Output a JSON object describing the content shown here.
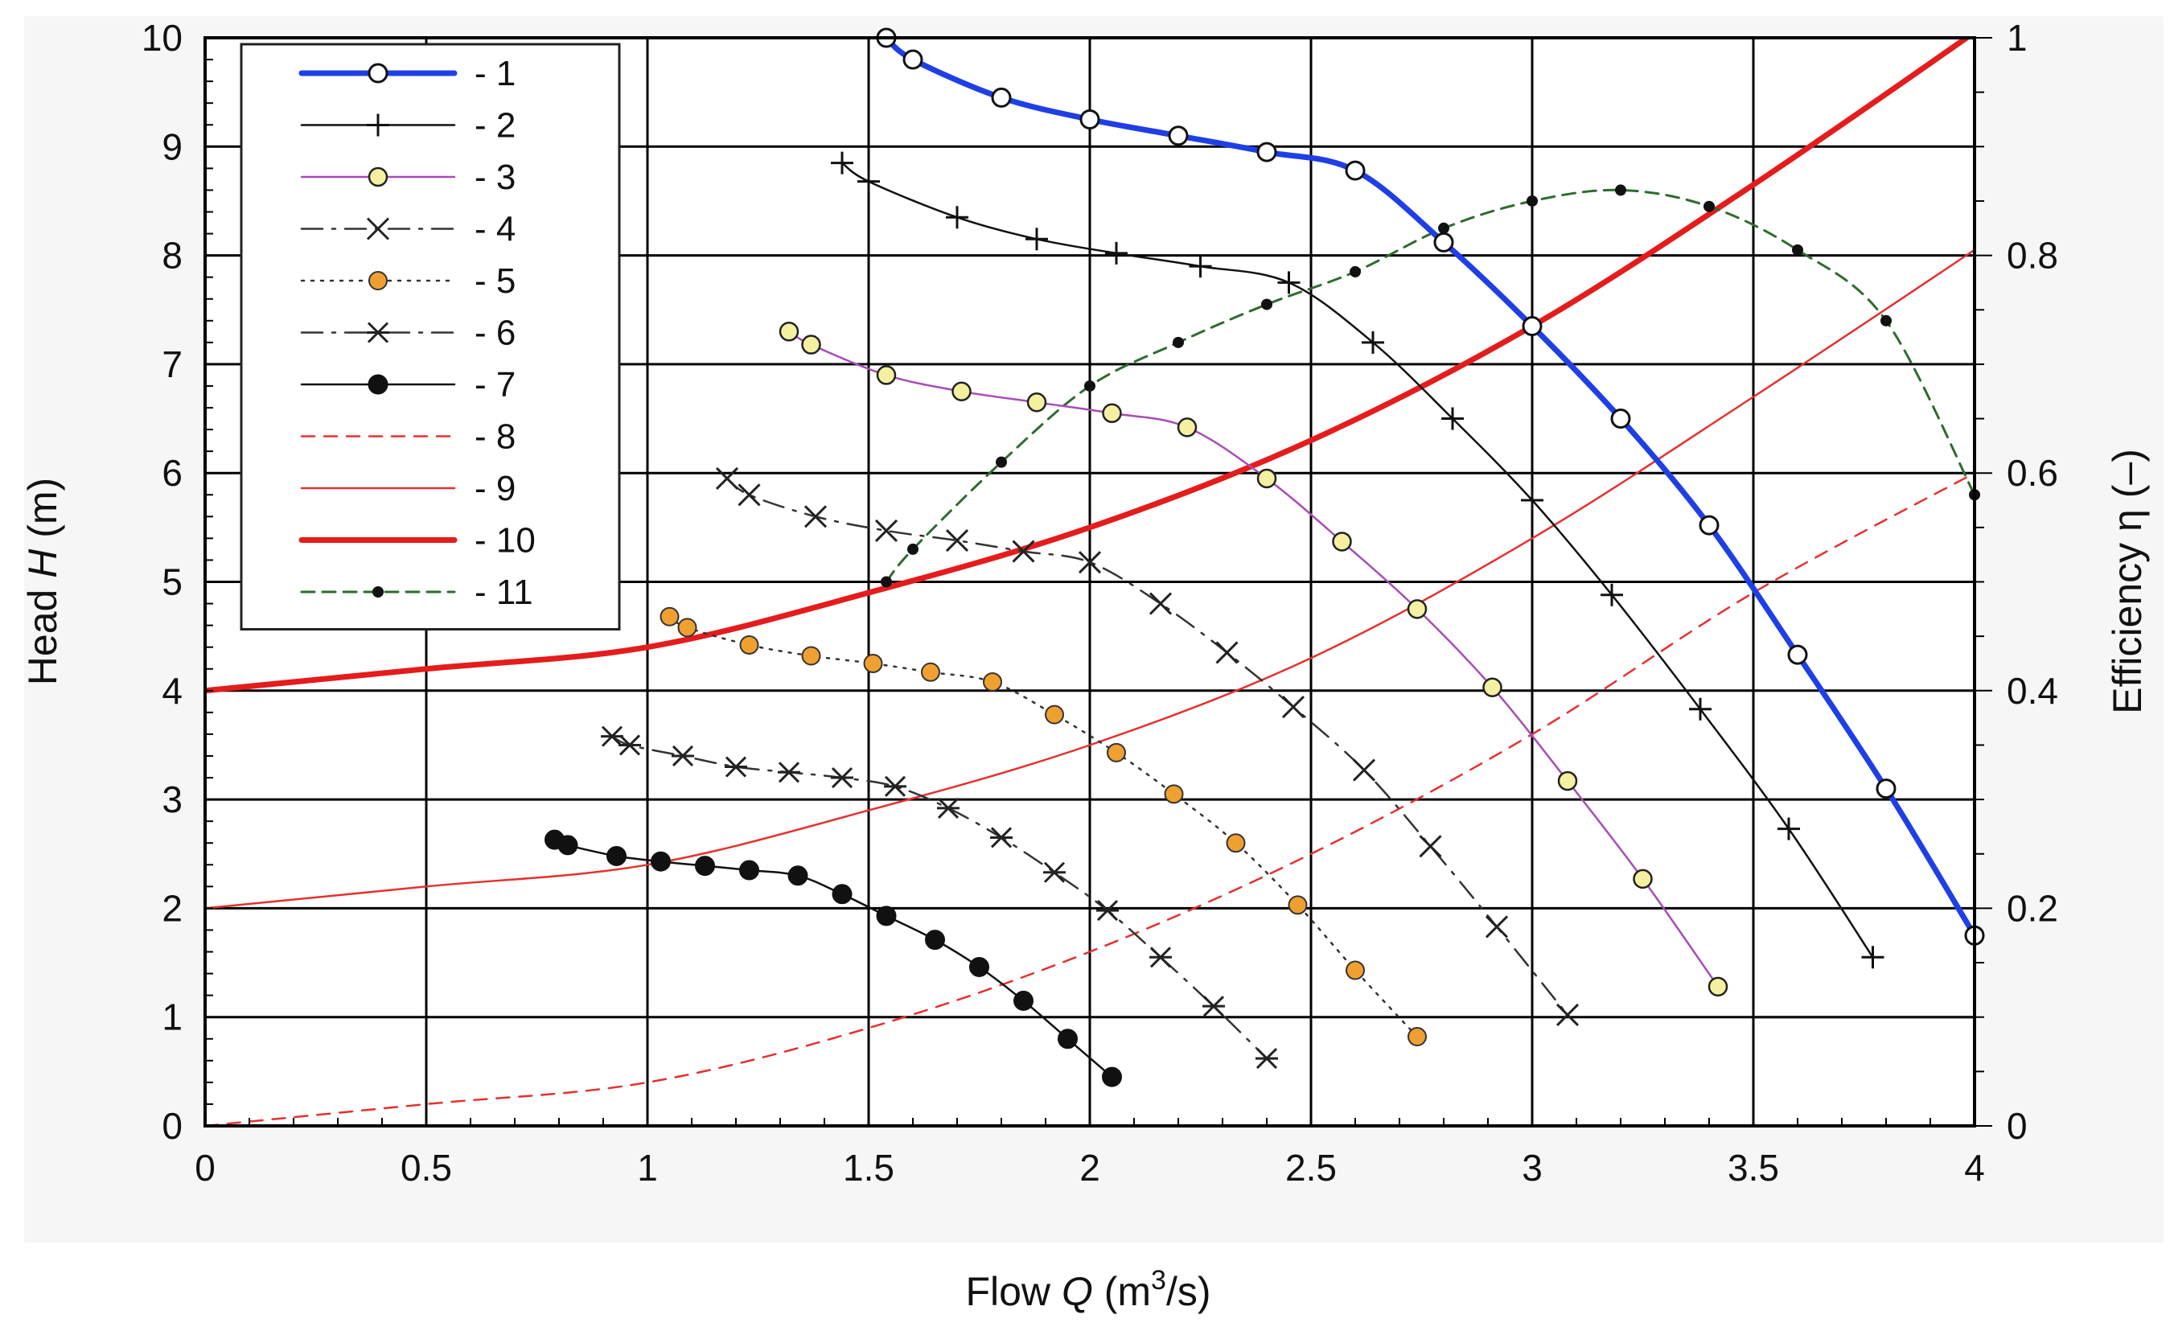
{
  "chart_data": {
    "type": "line",
    "title": "",
    "xlabel": "Flow Q (m3/s)",
    "xlabel_parts": {
      "prefix": "Flow ",
      "var": "Q",
      "mid": " (m",
      "sup": "3",
      "suffix": "/s)"
    },
    "ylabel": "Head H (m)",
    "ylabel_parts": {
      "prefix": "Head ",
      "var": "H",
      "suffix": " (m)"
    },
    "y2label": "Efficiency η (–)",
    "xlim": [
      0,
      4
    ],
    "ylim": [
      0,
      10
    ],
    "y2lim": [
      0,
      1
    ],
    "grid": true,
    "legend_position": "top-left",
    "x_ticks": [
      "0",
      "0.5",
      "1",
      "1.5",
      "2",
      "2.5",
      "3",
      "3.5",
      "4"
    ],
    "x_tick_values": [
      0,
      0.5,
      1,
      1.5,
      2,
      2.5,
      3,
      3.5,
      4
    ],
    "y_ticks": [
      "0",
      "1",
      "2",
      "3",
      "4",
      "5",
      "6",
      "7",
      "8",
      "9",
      "10"
    ],
    "y_tick_values": [
      0,
      1,
      2,
      3,
      4,
      5,
      6,
      7,
      8,
      9,
      10
    ],
    "y2_ticks": [
      "0",
      "0.2",
      "0.4",
      "0.6",
      "0.8",
      "1"
    ],
    "y2_tick_values": [
      0,
      0.2,
      0.4,
      0.6,
      0.8,
      1.0
    ],
    "series": [
      {
        "name": "- 1",
        "axis": "left",
        "color": "#1f3fe6",
        "style": "solid",
        "marker": "open-circle",
        "points": [
          [
            1.54,
            10.0
          ],
          [
            1.6,
            9.8
          ],
          [
            1.8,
            9.45
          ],
          [
            2.0,
            9.25
          ],
          [
            2.2,
            9.1
          ],
          [
            2.4,
            8.95
          ],
          [
            2.6,
            8.78
          ],
          [
            2.8,
            8.12
          ],
          [
            3.0,
            7.35
          ],
          [
            3.2,
            6.5
          ],
          [
            3.4,
            5.52
          ],
          [
            3.6,
            4.33
          ],
          [
            3.8,
            3.1
          ],
          [
            4.0,
            1.75
          ]
        ]
      },
      {
        "name": "- 2",
        "axis": "left",
        "color": "#111111",
        "style": "solid",
        "marker": "plus",
        "points": [
          [
            1.44,
            8.85
          ],
          [
            1.5,
            8.68
          ],
          [
            1.7,
            8.35
          ],
          [
            1.88,
            8.15
          ],
          [
            2.06,
            8.02
          ],
          [
            2.25,
            7.9
          ],
          [
            2.45,
            7.75
          ],
          [
            2.64,
            7.2
          ],
          [
            2.82,
            6.5
          ],
          [
            3.0,
            5.75
          ],
          [
            3.18,
            4.88
          ],
          [
            3.38,
            3.83
          ],
          [
            3.58,
            2.73
          ],
          [
            3.77,
            1.55
          ]
        ]
      },
      {
        "name": "- 3",
        "axis": "left",
        "color": "#a64db5",
        "style": "solid",
        "marker": "yellow-circle",
        "points": [
          [
            1.32,
            7.3
          ],
          [
            1.37,
            7.18
          ],
          [
            1.54,
            6.9
          ],
          [
            1.71,
            6.75
          ],
          [
            1.88,
            6.65
          ],
          [
            2.05,
            6.55
          ],
          [
            2.22,
            6.42
          ],
          [
            2.4,
            5.95
          ],
          [
            2.57,
            5.37
          ],
          [
            2.74,
            4.75
          ],
          [
            2.91,
            4.03
          ],
          [
            3.08,
            3.17
          ],
          [
            3.25,
            2.27
          ],
          [
            3.42,
            1.28
          ]
        ]
      },
      {
        "name": "- 4",
        "axis": "left",
        "color": "#333333",
        "style": "dashdot",
        "marker": "x",
        "points": [
          [
            1.18,
            5.95
          ],
          [
            1.23,
            5.8
          ],
          [
            1.38,
            5.6
          ],
          [
            1.54,
            5.47
          ],
          [
            1.7,
            5.38
          ],
          [
            1.85,
            5.28
          ],
          [
            2.0,
            5.18
          ],
          [
            2.16,
            4.8
          ],
          [
            2.31,
            4.35
          ],
          [
            2.46,
            3.85
          ],
          [
            2.62,
            3.27
          ],
          [
            2.77,
            2.57
          ],
          [
            2.92,
            1.83
          ],
          [
            3.08,
            1.02
          ]
        ]
      },
      {
        "name": "- 5",
        "axis": "left",
        "color": "#333333",
        "style": "dotted",
        "marker": "orange-circle",
        "points": [
          [
            1.05,
            4.68
          ],
          [
            1.09,
            4.58
          ],
          [
            1.23,
            4.42
          ],
          [
            1.37,
            4.32
          ],
          [
            1.51,
            4.25
          ],
          [
            1.64,
            4.17
          ],
          [
            1.78,
            4.08
          ],
          [
            1.92,
            3.78
          ],
          [
            2.06,
            3.43
          ],
          [
            2.19,
            3.05
          ],
          [
            2.33,
            2.6
          ],
          [
            2.47,
            2.03
          ],
          [
            2.6,
            1.43
          ],
          [
            2.74,
            0.82
          ]
        ]
      },
      {
        "name": "- 6",
        "axis": "left",
        "color": "#333333",
        "style": "dashdot",
        "marker": "star",
        "points": [
          [
            0.92,
            3.58
          ],
          [
            0.96,
            3.5
          ],
          [
            1.08,
            3.4
          ],
          [
            1.2,
            3.3
          ],
          [
            1.32,
            3.25
          ],
          [
            1.44,
            3.2
          ],
          [
            1.56,
            3.12
          ],
          [
            1.68,
            2.92
          ],
          [
            1.8,
            2.65
          ],
          [
            1.92,
            2.33
          ],
          [
            2.04,
            1.98
          ],
          [
            2.16,
            1.55
          ],
          [
            2.28,
            1.1
          ],
          [
            2.4,
            0.62
          ]
        ]
      },
      {
        "name": "- 7",
        "axis": "left",
        "color": "#111111",
        "style": "solid",
        "marker": "filled-circle",
        "points": [
          [
            0.79,
            2.63
          ],
          [
            0.82,
            2.58
          ],
          [
            0.93,
            2.48
          ],
          [
            1.03,
            2.43
          ],
          [
            1.13,
            2.39
          ],
          [
            1.23,
            2.35
          ],
          [
            1.34,
            2.3
          ],
          [
            1.44,
            2.13
          ],
          [
            1.54,
            1.93
          ],
          [
            1.65,
            1.71
          ],
          [
            1.75,
            1.46
          ],
          [
            1.85,
            1.15
          ],
          [
            1.95,
            0.8
          ],
          [
            2.05,
            0.45
          ]
        ]
      },
      {
        "name": "- 8",
        "axis": "left",
        "color": "#e53030",
        "style": "dashed",
        "marker": "none",
        "points": [
          [
            0,
            0.0
          ],
          [
            0.5,
            0.2
          ],
          [
            1.0,
            0.4
          ],
          [
            1.5,
            0.9
          ],
          [
            2.0,
            1.6
          ],
          [
            2.5,
            2.5
          ],
          [
            3.0,
            3.6
          ],
          [
            3.5,
            4.9
          ],
          [
            4.0,
            6.0
          ]
        ]
      },
      {
        "name": "- 9",
        "axis": "left",
        "color": "#e53030",
        "style": "solid",
        "marker": "none",
        "points": [
          [
            0,
            2.0
          ],
          [
            0.5,
            2.2
          ],
          [
            1.0,
            2.4
          ],
          [
            1.5,
            2.9
          ],
          [
            2.0,
            3.5
          ],
          [
            2.5,
            4.3
          ],
          [
            3.0,
            5.4
          ],
          [
            3.5,
            6.7
          ],
          [
            4.0,
            8.05
          ]
        ]
      },
      {
        "name": "- 10",
        "axis": "left",
        "color": "#e51c1c",
        "style": "solid-thick",
        "marker": "none",
        "points": [
          [
            0,
            4.0
          ],
          [
            0.5,
            4.2
          ],
          [
            1.0,
            4.4
          ],
          [
            1.5,
            4.9
          ],
          [
            2.0,
            5.5
          ],
          [
            2.5,
            6.3
          ],
          [
            3.0,
            7.35
          ],
          [
            3.5,
            8.65
          ],
          [
            4.0,
            10.05
          ]
        ]
      },
      {
        "name": "- 11",
        "axis": "right",
        "color": "#2e6b2e",
        "style": "dashed",
        "marker": "dot",
        "points": [
          [
            1.54,
            0.5
          ],
          [
            1.6,
            0.53
          ],
          [
            1.8,
            0.61
          ],
          [
            2.0,
            0.68
          ],
          [
            2.2,
            0.72
          ],
          [
            2.4,
            0.755
          ],
          [
            2.6,
            0.785
          ],
          [
            2.8,
            0.825
          ],
          [
            3.0,
            0.85
          ],
          [
            3.2,
            0.86
          ],
          [
            3.4,
            0.845
          ],
          [
            3.6,
            0.805
          ],
          [
            3.8,
            0.74
          ],
          [
            4.0,
            0.58
          ]
        ]
      }
    ],
    "extra_segments": [
      {
        "from": [
          3.5,
          1.0
        ],
        "to": [
          4.0,
          1.0
        ],
        "color": "#111111",
        "note": "short horizontal line at H=1"
      }
    ]
  }
}
